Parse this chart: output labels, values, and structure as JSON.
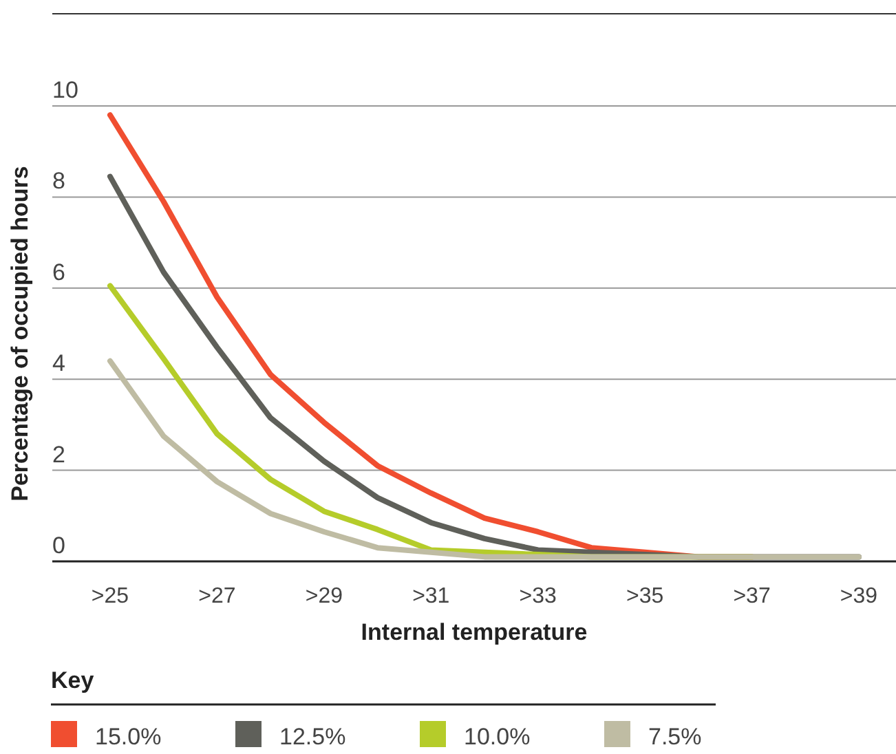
{
  "chart_data": {
    "type": "line",
    "xlabel": "Internal temperature",
    "ylabel": "Percentage of occupied hours",
    "legend_title": "Key",
    "legend": "bottom",
    "grid": "y",
    "line_style": "solid",
    "marker": "none",
    "categories": [
      ">25",
      null,
      ">27",
      null,
      ">29",
      null,
      ">31",
      null,
      ">33",
      null,
      ">35",
      null,
      ">37",
      null,
      ">39"
    ],
    "ylim": [
      0,
      10
    ],
    "yticks": [
      0,
      2,
      4,
      6,
      8,
      10
    ],
    "series": [
      {
        "name": "15.0%",
        "color": "#f04e30",
        "values": [
          9.8,
          7.9,
          5.8,
          4.1,
          3.05,
          2.1,
          1.5,
          0.95,
          0.65,
          0.3,
          0.2,
          0.1,
          0.1,
          null,
          null
        ]
      },
      {
        "name": "12.5%",
        "color": "#5f605a",
        "values": [
          8.45,
          6.35,
          4.7,
          3.15,
          2.2,
          1.4,
          0.85,
          0.5,
          0.25,
          0.2,
          0.15,
          0.1,
          0.1,
          0.1,
          0.1
        ]
      },
      {
        "name": "10.0%",
        "color": "#b5cc2a",
        "values": [
          6.05,
          4.45,
          2.8,
          1.8,
          1.1,
          0.7,
          0.25,
          0.2,
          0.15,
          0.1,
          0.1,
          0.1,
          0.1,
          null,
          null
        ]
      },
      {
        "name": "7.5%",
        "color": "#bfbca3",
        "values": [
          4.4,
          2.75,
          1.75,
          1.05,
          0.65,
          0.3,
          0.2,
          0.1,
          0.1,
          0.1,
          0.1,
          0.1,
          0.1,
          0.1,
          0.1
        ]
      }
    ]
  }
}
